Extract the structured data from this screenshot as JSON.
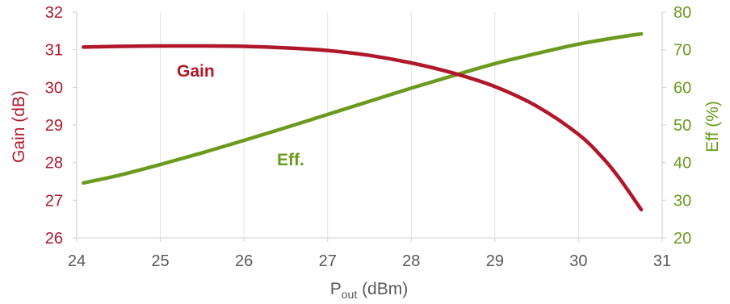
{
  "chart_data": {
    "type": "line",
    "x_axis": {
      "label_main": "P",
      "label_sub": "out",
      "label_unit": " (dBm)",
      "range": [
        24,
        31
      ],
      "ticks": [
        "24",
        "25",
        "26",
        "27",
        "28",
        "29",
        "30",
        "31"
      ]
    },
    "y_left": {
      "label": "Gain (dB)",
      "range": [
        26,
        32
      ],
      "ticks": [
        "26",
        "27",
        "28",
        "29",
        "30",
        "31",
        "32"
      ],
      "color": "#B0172A"
    },
    "y_right": {
      "label": "Eff (%)",
      "range": [
        20,
        80
      ],
      "ticks": [
        "20",
        "30",
        "40",
        "50",
        "60",
        "70",
        "80"
      ],
      "color": "#6B9A1E"
    },
    "grid": "vertical",
    "series": [
      {
        "name": "Gain",
        "axis": "left",
        "color": "#B0172A",
        "x": [
          24.08,
          24.5,
          25,
          25.5,
          26,
          26.5,
          27,
          27.5,
          28,
          28.5,
          29,
          29.5,
          30,
          30.3,
          30.5,
          30.75
        ],
        "y": [
          31.07,
          31.09,
          31.1,
          31.1,
          31.09,
          31.05,
          30.98,
          30.85,
          30.65,
          30.38,
          30.02,
          29.5,
          28.75,
          28.1,
          27.55,
          26.75
        ]
      },
      {
        "name": "Eff.",
        "axis": "right",
        "color": "#6B9A1E",
        "x": [
          24.08,
          24.5,
          25,
          25.5,
          26,
          26.5,
          27,
          27.5,
          28,
          28.5,
          29,
          29.5,
          30,
          30.5,
          30.75
        ],
        "y": [
          34.6,
          36.6,
          39.5,
          42.6,
          45.9,
          49.3,
          52.8,
          56.3,
          59.8,
          63.1,
          66.3,
          69.0,
          71.5,
          73.4,
          74.2
        ]
      }
    ]
  }
}
